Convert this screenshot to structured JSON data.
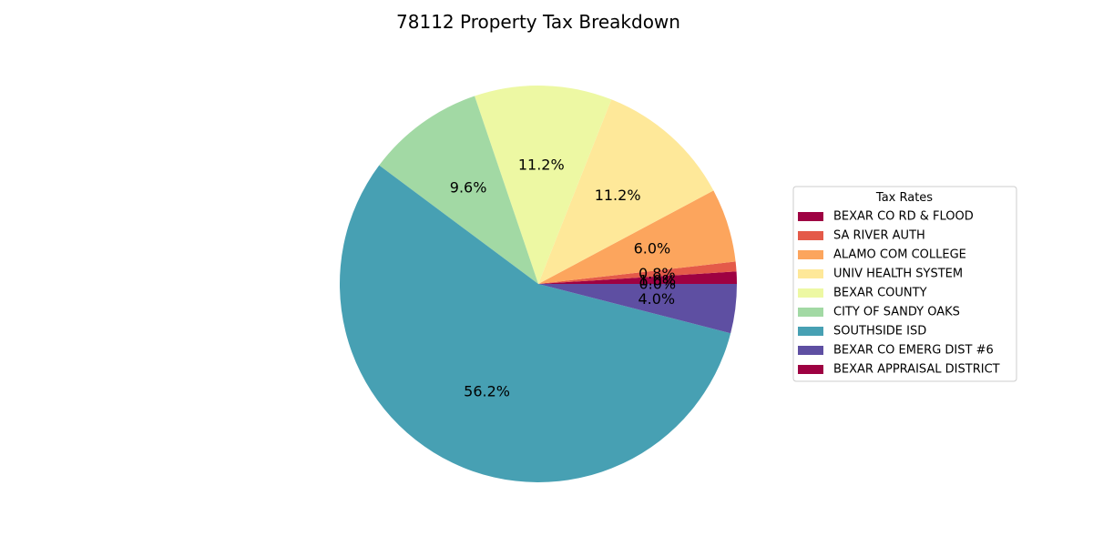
{
  "chart_data": {
    "type": "pie",
    "title": "78112 Property Tax Breakdown",
    "legend_title": "Tax Rates",
    "legend_position": "right",
    "start_angle_deg": 0,
    "direction": "counterclockwise",
    "slices": [
      {
        "label": "BEXAR CO RD & FLOOD",
        "value": 1.0,
        "pct_label": "1.0%",
        "color": "#9e0142"
      },
      {
        "label": "SA RIVER AUTH",
        "value": 0.8,
        "pct_label": "0.8%",
        "color": "#e45a49"
      },
      {
        "label": "ALAMO COM COLLEGE",
        "value": 6.0,
        "pct_label": "6.0%",
        "color": "#fca55d"
      },
      {
        "label": "UNIV HEALTH SYSTEM",
        "value": 11.2,
        "pct_label": "11.2%",
        "color": "#fee899"
      },
      {
        "label": "BEXAR COUNTY",
        "value": 11.2,
        "pct_label": "11.2%",
        "color": "#edf8a3"
      },
      {
        "label": "CITY OF SANDY OAKS",
        "value": 9.6,
        "pct_label": "9.6%",
        "color": "#a2d9a4"
      },
      {
        "label": "SOUTHSIDE ISD",
        "value": 56.2,
        "pct_label": "56.2%",
        "color": "#47a0b3"
      },
      {
        "label": "BEXAR CO EMERG DIST #6",
        "value": 4.0,
        "pct_label": "4.0%",
        "color": "#5e4fa2"
      },
      {
        "label": "BEXAR APPRAISAL DISTRICT",
        "value": 0.0,
        "pct_label": "0.0%",
        "color": "#9e0142"
      }
    ]
  }
}
